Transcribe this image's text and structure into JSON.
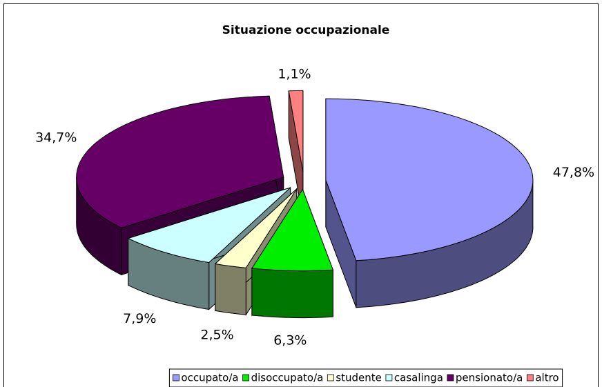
{
  "chart_data": {
    "type": "pie3d",
    "title": "Situazione occupazionale",
    "categories": [
      "occupato/a",
      "disoccupato/a",
      "studente",
      "casalinga",
      "pensionato/a",
      "altro"
    ],
    "values": [
      47.8,
      6.3,
      2.5,
      7.9,
      34.7,
      1.1
    ],
    "value_labels": [
      "47,8%",
      "6,3%",
      "2,5%",
      "7,9%",
      "34,7%",
      "1,1%"
    ],
    "colors": [
      "#9999ff",
      "#00ee00",
      "#ffffcc",
      "#ccffff",
      "#660066",
      "#ff8080"
    ],
    "legend": "bottom"
  }
}
